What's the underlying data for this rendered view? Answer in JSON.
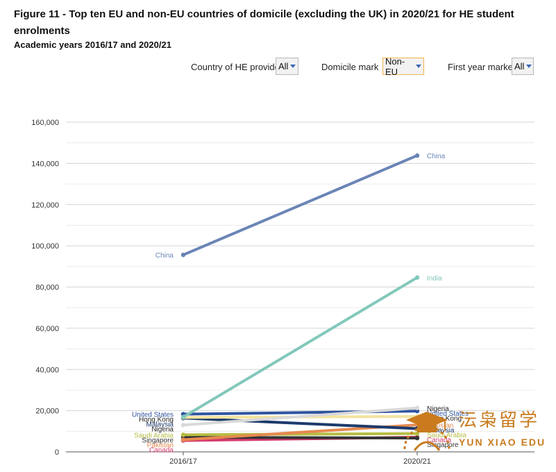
{
  "header": {
    "title": "Figure 11 - Top ten EU and non-EU countries of domicile (excluding the UK) in 2020/21 for HE student enrolments",
    "subtitle": "Academic years 2016/17 and 2020/21"
  },
  "filters": [
    {
      "label": "Country of HE provider",
      "value": "All"
    },
    {
      "label": "Domicile marker",
      "value": "Non-EU"
    },
    {
      "label": "First year marker",
      "value": "All"
    }
  ],
  "watermark": {
    "chinese": "沄枭留学",
    "english": "YUN XIAO EDU"
  },
  "chart_data": {
    "type": "line",
    "x": [
      "2016/17",
      "2020/21"
    ],
    "ylim": [
      0,
      160000
    ],
    "yticks": [
      0,
      20000,
      40000,
      60000,
      80000,
      100000,
      120000,
      140000,
      160000
    ],
    "ytick_labels": [
      "0",
      "20,000",
      "40,000",
      "60,000",
      "80,000",
      "100,000",
      "120,000",
      "140,000",
      "160,000"
    ],
    "grid": true,
    "series": [
      {
        "name": "China",
        "color": "#6a85b6",
        "values": [
          95600,
          143800
        ],
        "left_label": "China",
        "right_label": "China"
      },
      {
        "name": "India",
        "color": "#82c8ba",
        "values": [
          16900,
          84600
        ],
        "left_label": "",
        "right_label": "India"
      },
      {
        "name": "Nigeria",
        "color": "#d9d9d9",
        "values": [
          13000,
          21300
        ],
        "left_label": "Nigeria",
        "right_label": "Nigeria"
      },
      {
        "name": "United States",
        "color": "#2f54a0",
        "values": [
          18300,
          19800
        ],
        "left_label": "United States",
        "right_label": "United States"
      },
      {
        "name": "Hong Kong",
        "color": "#f3e3a0",
        "values": [
          16700,
          17200
        ],
        "left_label": "Hong Kong",
        "right_label": "Hong Kong"
      },
      {
        "name": "Malaysia",
        "color": "#1c3a6b",
        "values": [
          16400,
          11300
        ],
        "left_label": "Malaysia",
        "right_label": "Malaysia"
      },
      {
        "name": "Pakistan",
        "color": "#e58a50",
        "values": [
          5900,
          13100
        ],
        "left_label": "Pakistan",
        "right_label": "Pakistan"
      },
      {
        "name": "Saudi Arabia",
        "color": "#b6bd44",
        "values": [
          8300,
          8900
        ],
        "left_label": "Saudi Arabia",
        "right_label": "Saudi Arabia"
      },
      {
        "name": "Singapore",
        "color": "#333333",
        "values": [
          7100,
          6700
        ],
        "left_label": "Singapore",
        "right_label": "Singapore"
      },
      {
        "name": "Canada",
        "color": "#d63c6d",
        "values": [
          5500,
          7100
        ],
        "left_label": "Canada",
        "right_label": "Canada"
      }
    ]
  }
}
